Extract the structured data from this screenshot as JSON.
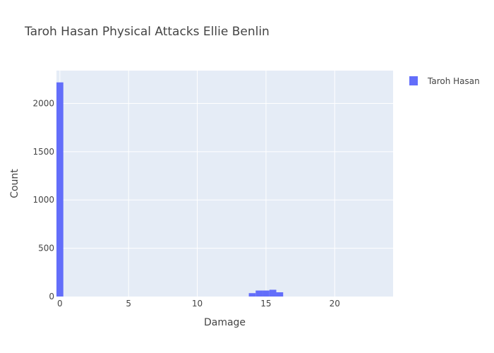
{
  "chart_data": {
    "type": "bar",
    "title": "Taroh Hasan Physical Attacks Ellie Benlin",
    "xlabel": "Damage",
    "ylabel": "Count",
    "x_ticks": [
      "0",
      "5",
      "10",
      "15",
      "20"
    ],
    "y_ticks": [
      "0",
      "500",
      "1000",
      "1500",
      "2000"
    ],
    "xlim": [
      -0.25,
      24.25
    ],
    "ylim": [
      0,
      2340
    ],
    "grid": true,
    "legend_position": "top-right",
    "colors": {
      "plot_bg": "#e5ecf6",
      "bar": "#636efa",
      "grid": "#ffffff"
    },
    "series": [
      {
        "name": "Taroh Hasan",
        "bins": [
          {
            "x0": -0.25,
            "x1": 0.25,
            "count": 2218
          },
          {
            "x0": 13.75,
            "x1": 14.25,
            "count": 35
          },
          {
            "x0": 14.25,
            "x1": 14.75,
            "count": 62
          },
          {
            "x0": 14.75,
            "x1": 15.25,
            "count": 62
          },
          {
            "x0": 15.25,
            "x1": 15.75,
            "count": 70
          },
          {
            "x0": 15.75,
            "x1": 16.25,
            "count": 44
          }
        ]
      }
    ]
  }
}
